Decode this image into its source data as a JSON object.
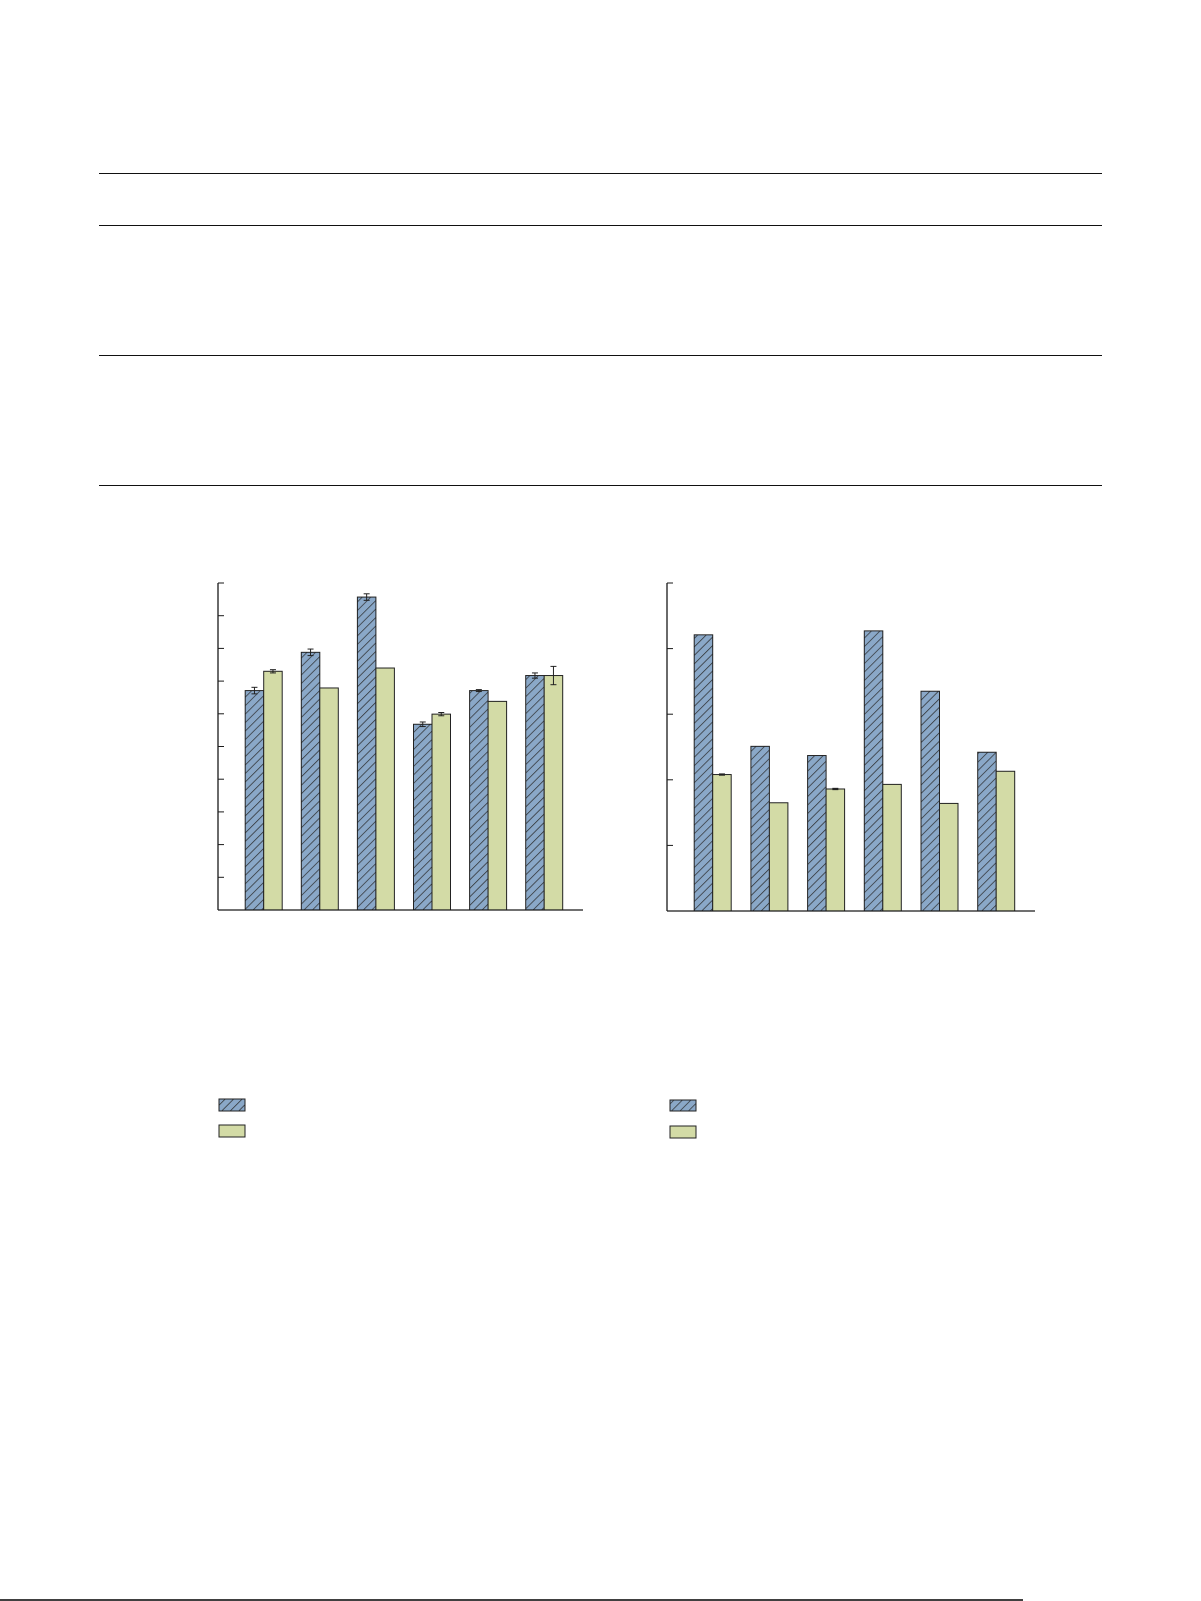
{
  "colors": {
    "series_a": "#8aa8c8",
    "series_b": "#d3dba6",
    "hatch": "#2a2a2a",
    "axis": "#1a1a1a"
  },
  "chart_data": [
    {
      "type": "bar",
      "title": "",
      "xlabel": "",
      "ylabel": "",
      "ylim": [
        0,
        10
      ],
      "y_ticks": [
        0,
        1,
        2,
        3,
        4,
        5,
        6,
        7,
        8,
        9,
        10
      ],
      "grid": false,
      "legend": "below",
      "categories": [
        "",
        "",
        "",
        "",
        "",
        ""
      ],
      "series": [
        {
          "pattern": "hatched",
          "values": [
            6.71,
            7.88,
            9.57,
            5.68,
            6.71,
            7.17
          ],
          "errors": [
            0.1,
            0.1,
            0.1,
            0.07,
            0.03,
            0.08
          ]
        },
        {
          "pattern": "solid",
          "values": [
            7.3,
            6.79,
            7.4,
            5.99,
            6.38,
            7.17
          ],
          "errors": [
            0.05,
            0,
            0,
            0.05,
            0,
            0.28
          ]
        }
      ]
    },
    {
      "type": "bar",
      "title": "",
      "xlabel": "",
      "ylabel": "",
      "ylim": [
        0,
        5
      ],
      "y_ticks": [
        0,
        1,
        2,
        3,
        4,
        5
      ],
      "grid": false,
      "legend": "below",
      "categories": [
        "",
        "",
        "",
        "",
        "",
        ""
      ],
      "series": [
        {
          "pattern": "hatched",
          "values": [
            4.21,
            2.51,
            2.37,
            4.27,
            3.35,
            2.42
          ],
          "errors": [
            0,
            0,
            0,
            0,
            0,
            0
          ]
        },
        {
          "pattern": "solid",
          "values": [
            2.08,
            1.65,
            1.86,
            1.93,
            1.64,
            2.13
          ],
          "errors": [
            0.01,
            0,
            0.01,
            0,
            0,
            0
          ]
        }
      ]
    }
  ]
}
